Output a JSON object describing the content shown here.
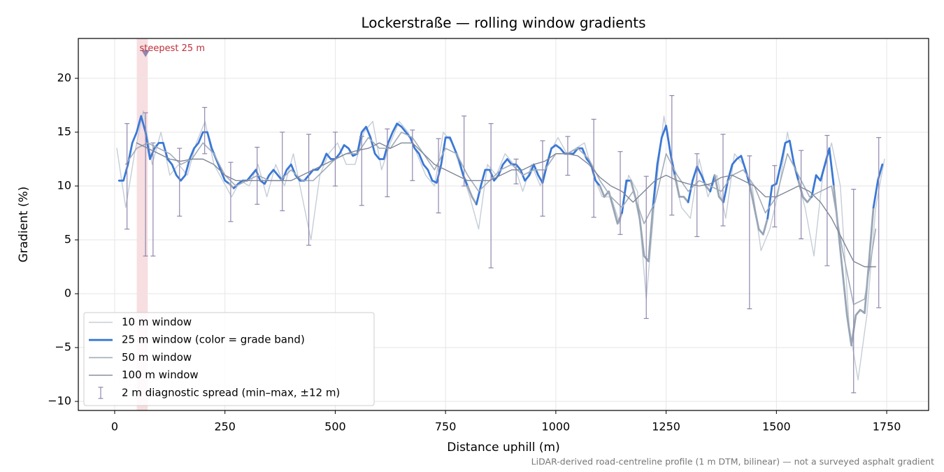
{
  "chart_data": {
    "type": "line",
    "title": "Lockerstraße — rolling window gradients",
    "xlabel": "Distance uphill (m)",
    "ylabel": "Gradient (%)",
    "footnote": "LiDAR-derived road-centreline profile (1 m DTM, bilinear) — not a surveyed asphalt gradient",
    "xlim": [
      -82.4,
      1845
    ],
    "ylim": [
      -10.84,
      23.7
    ],
    "xticks": [
      0,
      250,
      500,
      750,
      1000,
      1250,
      1500,
      1750
    ],
    "yticks": [
      {
        "value": -10,
        "label": "−10"
      },
      {
        "value": -5,
        "label": "−5"
      },
      0,
      5,
      10,
      15,
      20
    ],
    "grid": true,
    "legend": "lower left",
    "highlight": {
      "x0": 50,
      "x1": 75,
      "label": "steepest 25 m",
      "marker_x": 70,
      "marker_y": 22.3,
      "color": "#e8a0a8"
    },
    "series": [
      {
        "name": "10 m window",
        "color": "#c5cdd6",
        "width": 1.4,
        "x": [
          5,
          25,
          45,
          65,
          85,
          105,
          125,
          145,
          165,
          185,
          205,
          225,
          245,
          265,
          285,
          305,
          325,
          345,
          365,
          385,
          405,
          425,
          445,
          465,
          485,
          505,
          525,
          545,
          565,
          585,
          605,
          625,
          645,
          665,
          685,
          705,
          725,
          745,
          765,
          785,
          805,
          825,
          845,
          865,
          885,
          905,
          925,
          945,
          965,
          985,
          1005,
          1025,
          1045,
          1065,
          1085,
          1105,
          1125,
          1145,
          1165,
          1185,
          1205,
          1225,
          1245,
          1265,
          1285,
          1305,
          1325,
          1345,
          1365,
          1385,
          1405,
          1425,
          1445,
          1465,
          1485,
          1505,
          1525,
          1545,
          1565,
          1585,
          1605,
          1625,
          1645,
          1665,
          1685,
          1705,
          1725,
          1745
        ],
        "values": [
          13.5,
          8,
          13,
          17,
          12,
          15,
          11,
          12,
          11,
          14,
          16,
          12,
          10.5,
          9,
          10.5,
          10,
          12,
          9,
          12,
          10,
          13,
          9,
          5,
          11,
          13,
          14,
          12,
          12,
          15,
          16,
          11.5,
          14,
          16,
          15,
          13,
          11,
          10,
          15,
          14,
          11.5,
          9,
          6,
          12,
          11,
          13,
          12,
          9.5,
          12,
          10,
          13,
          14.5,
          13,
          13.5,
          14,
          11,
          9,
          9,
          6.5,
          11,
          9.5,
          -0.5,
          9,
          16.5,
          11.5,
          8,
          7,
          12.5,
          9,
          11,
          7,
          13,
          12,
          10,
          4,
          6,
          9.5,
          15,
          11,
          8,
          3.5,
          11,
          14,
          10,
          -3,
          -8,
          -2,
          8,
          12.5
        ]
      },
      {
        "name": "25 m window (color = grade band)",
        "color": "#3a78d6",
        "below_color": "#98a5b5",
        "band_threshold": 10,
        "width": 2.8,
        "x": [
          10,
          20,
          30,
          40,
          50,
          60,
          70,
          80,
          90,
          100,
          110,
          120,
          130,
          140,
          150,
          160,
          170,
          180,
          190,
          200,
          210,
          220,
          230,
          240,
          250,
          260,
          270,
          280,
          290,
          300,
          310,
          320,
          330,
          340,
          350,
          360,
          370,
          380,
          390,
          400,
          410,
          420,
          430,
          440,
          450,
          460,
          470,
          480,
          490,
          500,
          510,
          520,
          530,
          540,
          550,
          560,
          570,
          580,
          590,
          600,
          610,
          620,
          630,
          640,
          650,
          660,
          670,
          680,
          690,
          700,
          710,
          720,
          730,
          740,
          750,
          760,
          770,
          780,
          790,
          800,
          810,
          820,
          830,
          840,
          850,
          860,
          870,
          880,
          890,
          900,
          910,
          920,
          930,
          940,
          950,
          960,
          970,
          980,
          990,
          1000,
          1010,
          1020,
          1030,
          1040,
          1050,
          1060,
          1070,
          1080,
          1090,
          1100,
          1110,
          1120,
          1130,
          1140,
          1150,
          1160,
          1170,
          1180,
          1190,
          1200,
          1210,
          1220,
          1230,
          1240,
          1250,
          1260,
          1270,
          1280,
          1290,
          1300,
          1310,
          1320,
          1330,
          1340,
          1350,
          1360,
          1370,
          1380,
          1390,
          1400,
          1410,
          1420,
          1430,
          1440,
          1450,
          1460,
          1470,
          1480,
          1490,
          1500,
          1510,
          1520,
          1530,
          1540,
          1550,
          1560,
          1570,
          1580,
          1590,
          1600,
          1610,
          1620,
          1630,
          1640,
          1650,
          1660,
          1670,
          1680,
          1690,
          1700,
          1710,
          1720,
          1730,
          1740
        ],
        "values": [
          10.5,
          10.5,
          12,
          14,
          15,
          16.5,
          15,
          12.5,
          13.5,
          14,
          14,
          12.5,
          12,
          11,
          10.5,
          11,
          12.5,
          13.5,
          14,
          15,
          15,
          13.5,
          12.5,
          11.5,
          10.5,
          10.2,
          9.8,
          10.2,
          10.5,
          10.5,
          11,
          11.5,
          10.5,
          10.2,
          11,
          11.5,
          11,
          10.5,
          11.5,
          12,
          11,
          10.5,
          10.5,
          11,
          11.5,
          11.5,
          12,
          13,
          12.5,
          12.5,
          13,
          13.8,
          13.5,
          12.8,
          13,
          15,
          15.5,
          14.5,
          13,
          12.5,
          12.5,
          14,
          15,
          15.8,
          15.5,
          15,
          14.5,
          13.5,
          13,
          12,
          11.5,
          10.5,
          10.3,
          12,
          14.5,
          14.5,
          13.5,
          12.5,
          11,
          10,
          9,
          8.3,
          10,
          11.5,
          11.5,
          10.5,
          11,
          12,
          12.5,
          12,
          12,
          11.5,
          10.5,
          11,
          12,
          11,
          10.3,
          12,
          13.5,
          13.8,
          13.5,
          13,
          13,
          13,
          13.5,
          13.5,
          12.5,
          12,
          10.5,
          10,
          9,
          9.5,
          8,
          6.5,
          7.5,
          10.5,
          10.5,
          9,
          7,
          3.5,
          3,
          8,
          12,
          14.5,
          15.6,
          13,
          11,
          9,
          9,
          8.5,
          10.5,
          11.8,
          11,
          10,
          9.5,
          11,
          9,
          8.5,
          10.5,
          12,
          12.5,
          12.8,
          11.5,
          10,
          8,
          6,
          5.5,
          7,
          10,
          10.2,
          12,
          14,
          14.2,
          12,
          10.5,
          9,
          8.5,
          9,
          11,
          10.5,
          12,
          13.5,
          10,
          6,
          2,
          -2,
          -4.8,
          -2,
          -1.5,
          -1.8,
          3,
          8,
          10.5,
          12
        ]
      },
      {
        "name": "50 m window",
        "color": "#a2acba",
        "width": 1.6,
        "x": [
          25,
          50,
          75,
          100,
          125,
          150,
          175,
          200,
          225,
          250,
          275,
          300,
          325,
          350,
          375,
          400,
          425,
          450,
          475,
          500,
          525,
          550,
          575,
          600,
          625,
          650,
          675,
          700,
          725,
          750,
          775,
          800,
          825,
          850,
          875,
          900,
          925,
          950,
          975,
          1000,
          1025,
          1050,
          1075,
          1100,
          1125,
          1150,
          1175,
          1200,
          1225,
          1250,
          1275,
          1300,
          1325,
          1350,
          1375,
          1400,
          1425,
          1450,
          1475,
          1500,
          1525,
          1550,
          1575,
          1600,
          1625,
          1650,
          1675,
          1700,
          1725
        ],
        "values": [
          12,
          13.5,
          14,
          13.5,
          13,
          12,
          12.5,
          14,
          13,
          11,
          10,
          10.5,
          11,
          10.5,
          10.5,
          11.5,
          10.5,
          10.5,
          11.5,
          12.5,
          13,
          13,
          14.5,
          13.5,
          13.5,
          15,
          14.5,
          13,
          11.5,
          13.5,
          13,
          11,
          9.5,
          10.5,
          11.5,
          12,
          11,
          11.5,
          11.5,
          13,
          13,
          13.5,
          12.5,
          10.5,
          9,
          8,
          9.5,
          6.5,
          8.5,
          13,
          11,
          9.5,
          10.5,
          10,
          9.5,
          11,
          11.5,
          10,
          7.5,
          9,
          13,
          11,
          9,
          9.5,
          10,
          4,
          -1,
          -0.5,
          6
        ]
      },
      {
        "name": "100 m window",
        "color": "#7d8696",
        "width": 1.4,
        "x": [
          50,
          75,
          100,
          125,
          150,
          175,
          200,
          225,
          250,
          275,
          300,
          325,
          350,
          375,
          400,
          425,
          450,
          475,
          500,
          525,
          550,
          575,
          600,
          625,
          650,
          675,
          700,
          725,
          750,
          775,
          800,
          825,
          850,
          875,
          900,
          925,
          950,
          975,
          1000,
          1025,
          1050,
          1075,
          1100,
          1125,
          1150,
          1175,
          1200,
          1225,
          1250,
          1275,
          1300,
          1325,
          1350,
          1375,
          1400,
          1425,
          1450,
          1475,
          1500,
          1525,
          1550,
          1575,
          1600,
          1625,
          1650,
          1675,
          1700,
          1725
        ],
        "values": [
          14,
          13.5,
          13,
          12.5,
          12.3,
          12.5,
          12.5,
          12,
          11,
          10.5,
          10.5,
          10.5,
          10.5,
          10.5,
          10.5,
          11,
          11.5,
          12,
          12.5,
          13,
          13.3,
          13.5,
          14,
          13.5,
          14,
          14,
          13,
          12,
          11.5,
          11,
          10.5,
          10.5,
          10.5,
          11,
          11.5,
          11.5,
          12,
          12.3,
          13,
          13,
          12.8,
          12,
          10.8,
          10,
          9.5,
          8.5,
          9.5,
          10.5,
          11,
          10.5,
          10.2,
          10,
          10.2,
          10.8,
          11,
          10.5,
          10,
          9,
          9,
          9.5,
          10,
          9.5,
          8.5,
          7,
          5,
          3,
          2.5,
          2.5
        ]
      }
    ],
    "error_bars": {
      "name": "2 m diagnostic spread (min–max, ±12 m)",
      "color": "#8f86ad",
      "x": [
        28,
        70,
        87,
        147,
        204,
        263,
        323,
        380,
        440,
        500,
        560,
        618,
        675,
        734,
        792,
        853,
        910,
        970,
        1027,
        1086,
        1146,
        1205,
        1263,
        1320,
        1379,
        1439,
        1496,
        1556,
        1615,
        1675,
        1732
      ],
      "min": [
        6,
        3.5,
        3.5,
        7.2,
        13,
        6.7,
        8.3,
        7.7,
        4.5,
        10,
        8.2,
        9,
        10.5,
        7.5,
        10,
        2.4,
        10.2,
        7.2,
        11,
        7.1,
        5.5,
        -2.3,
        7.3,
        5.3,
        6.3,
        -1.4,
        6.2,
        5.1,
        2.6,
        -9.2,
        -1.3
      ],
      "max": [
        15.8,
        16.8,
        14,
        13.5,
        17.3,
        12.2,
        13.6,
        15,
        14.8,
        15,
        14.6,
        15.3,
        15.2,
        14.4,
        16.5,
        15.8,
        12.5,
        14.2,
        14.6,
        16.2,
        13.2,
        10.9,
        18.4,
        13,
        14.8,
        12.8,
        11.9,
        13.3,
        14.7,
        9.7,
        14.5
      ]
    }
  }
}
